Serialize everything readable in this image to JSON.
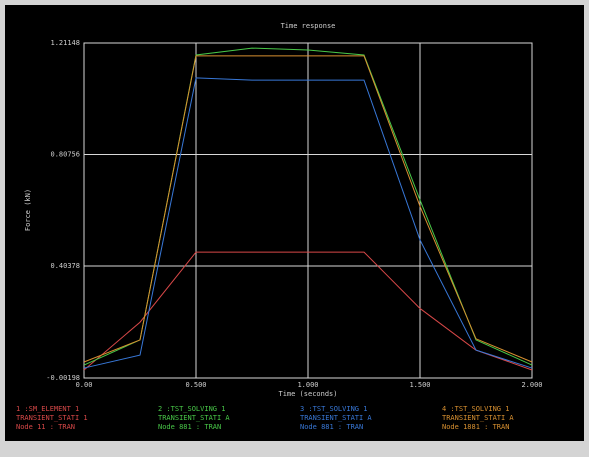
{
  "chart_data": {
    "type": "line",
    "title": "Time response",
    "xlabel": "Time (seconds)",
    "ylabel": "Force (kN)",
    "x": [
      0,
      0.25,
      0.5,
      0.75,
      1.0,
      1.25,
      1.5,
      1.75,
      2.0
    ],
    "xlim": [
      0,
      2
    ],
    "xticks": [
      {
        "value": 0,
        "label": "0.00"
      },
      {
        "value": 0.5,
        "label": "0.500"
      },
      {
        "value": 1,
        "label": "1.000"
      },
      {
        "value": 1.5,
        "label": "1.500"
      },
      {
        "value": 2,
        "label": "2.000"
      }
    ],
    "ylim": [
      -0.00198,
      1.21148
    ],
    "yticks": [
      -0.00198,
      0.40378,
      0.80756,
      1.21148
    ],
    "grid": true,
    "series": [
      {
        "name": "1 :SM_ELEMENT 1",
        "details": [
          "TRANSIENT_STATI 1",
          "Node 11 : TRAN"
        ],
        "color": "#d84848",
        "values": [
          0.027,
          0.2,
          0.454,
          0.454,
          0.454,
          0.454,
          0.25,
          0.099,
          0.027
        ]
      },
      {
        "name": "2 :TST_SOLVING 1",
        "details": [
          "TRANSIENT_STATI A",
          "Node 881 : TRAN"
        ],
        "color": "#48c848",
        "values": [
          0.045,
          0.136,
          1.168,
          1.193,
          1.186,
          1.168,
          0.643,
          0.136,
          0.045
        ]
      },
      {
        "name": "3 :TST_SOLVING 1",
        "details": [
          "TRANSIENT_STATI A",
          "Node 881 : TRAN"
        ],
        "color": "#3878d8",
        "values": [
          0.034,
          0.081,
          1.085,
          1.077,
          1.077,
          1.077,
          0.498,
          0.099,
          0.034
        ]
      },
      {
        "name": "4 :TST_SOLVING 1",
        "details": [
          "TRANSIENT_STATI A",
          "Node 1881 : TRAN"
        ],
        "color": "#d89030",
        "values": [
          0.056,
          0.136,
          1.165,
          1.165,
          1.165,
          1.165,
          0.62,
          0.14,
          0.056
        ]
      }
    ]
  }
}
